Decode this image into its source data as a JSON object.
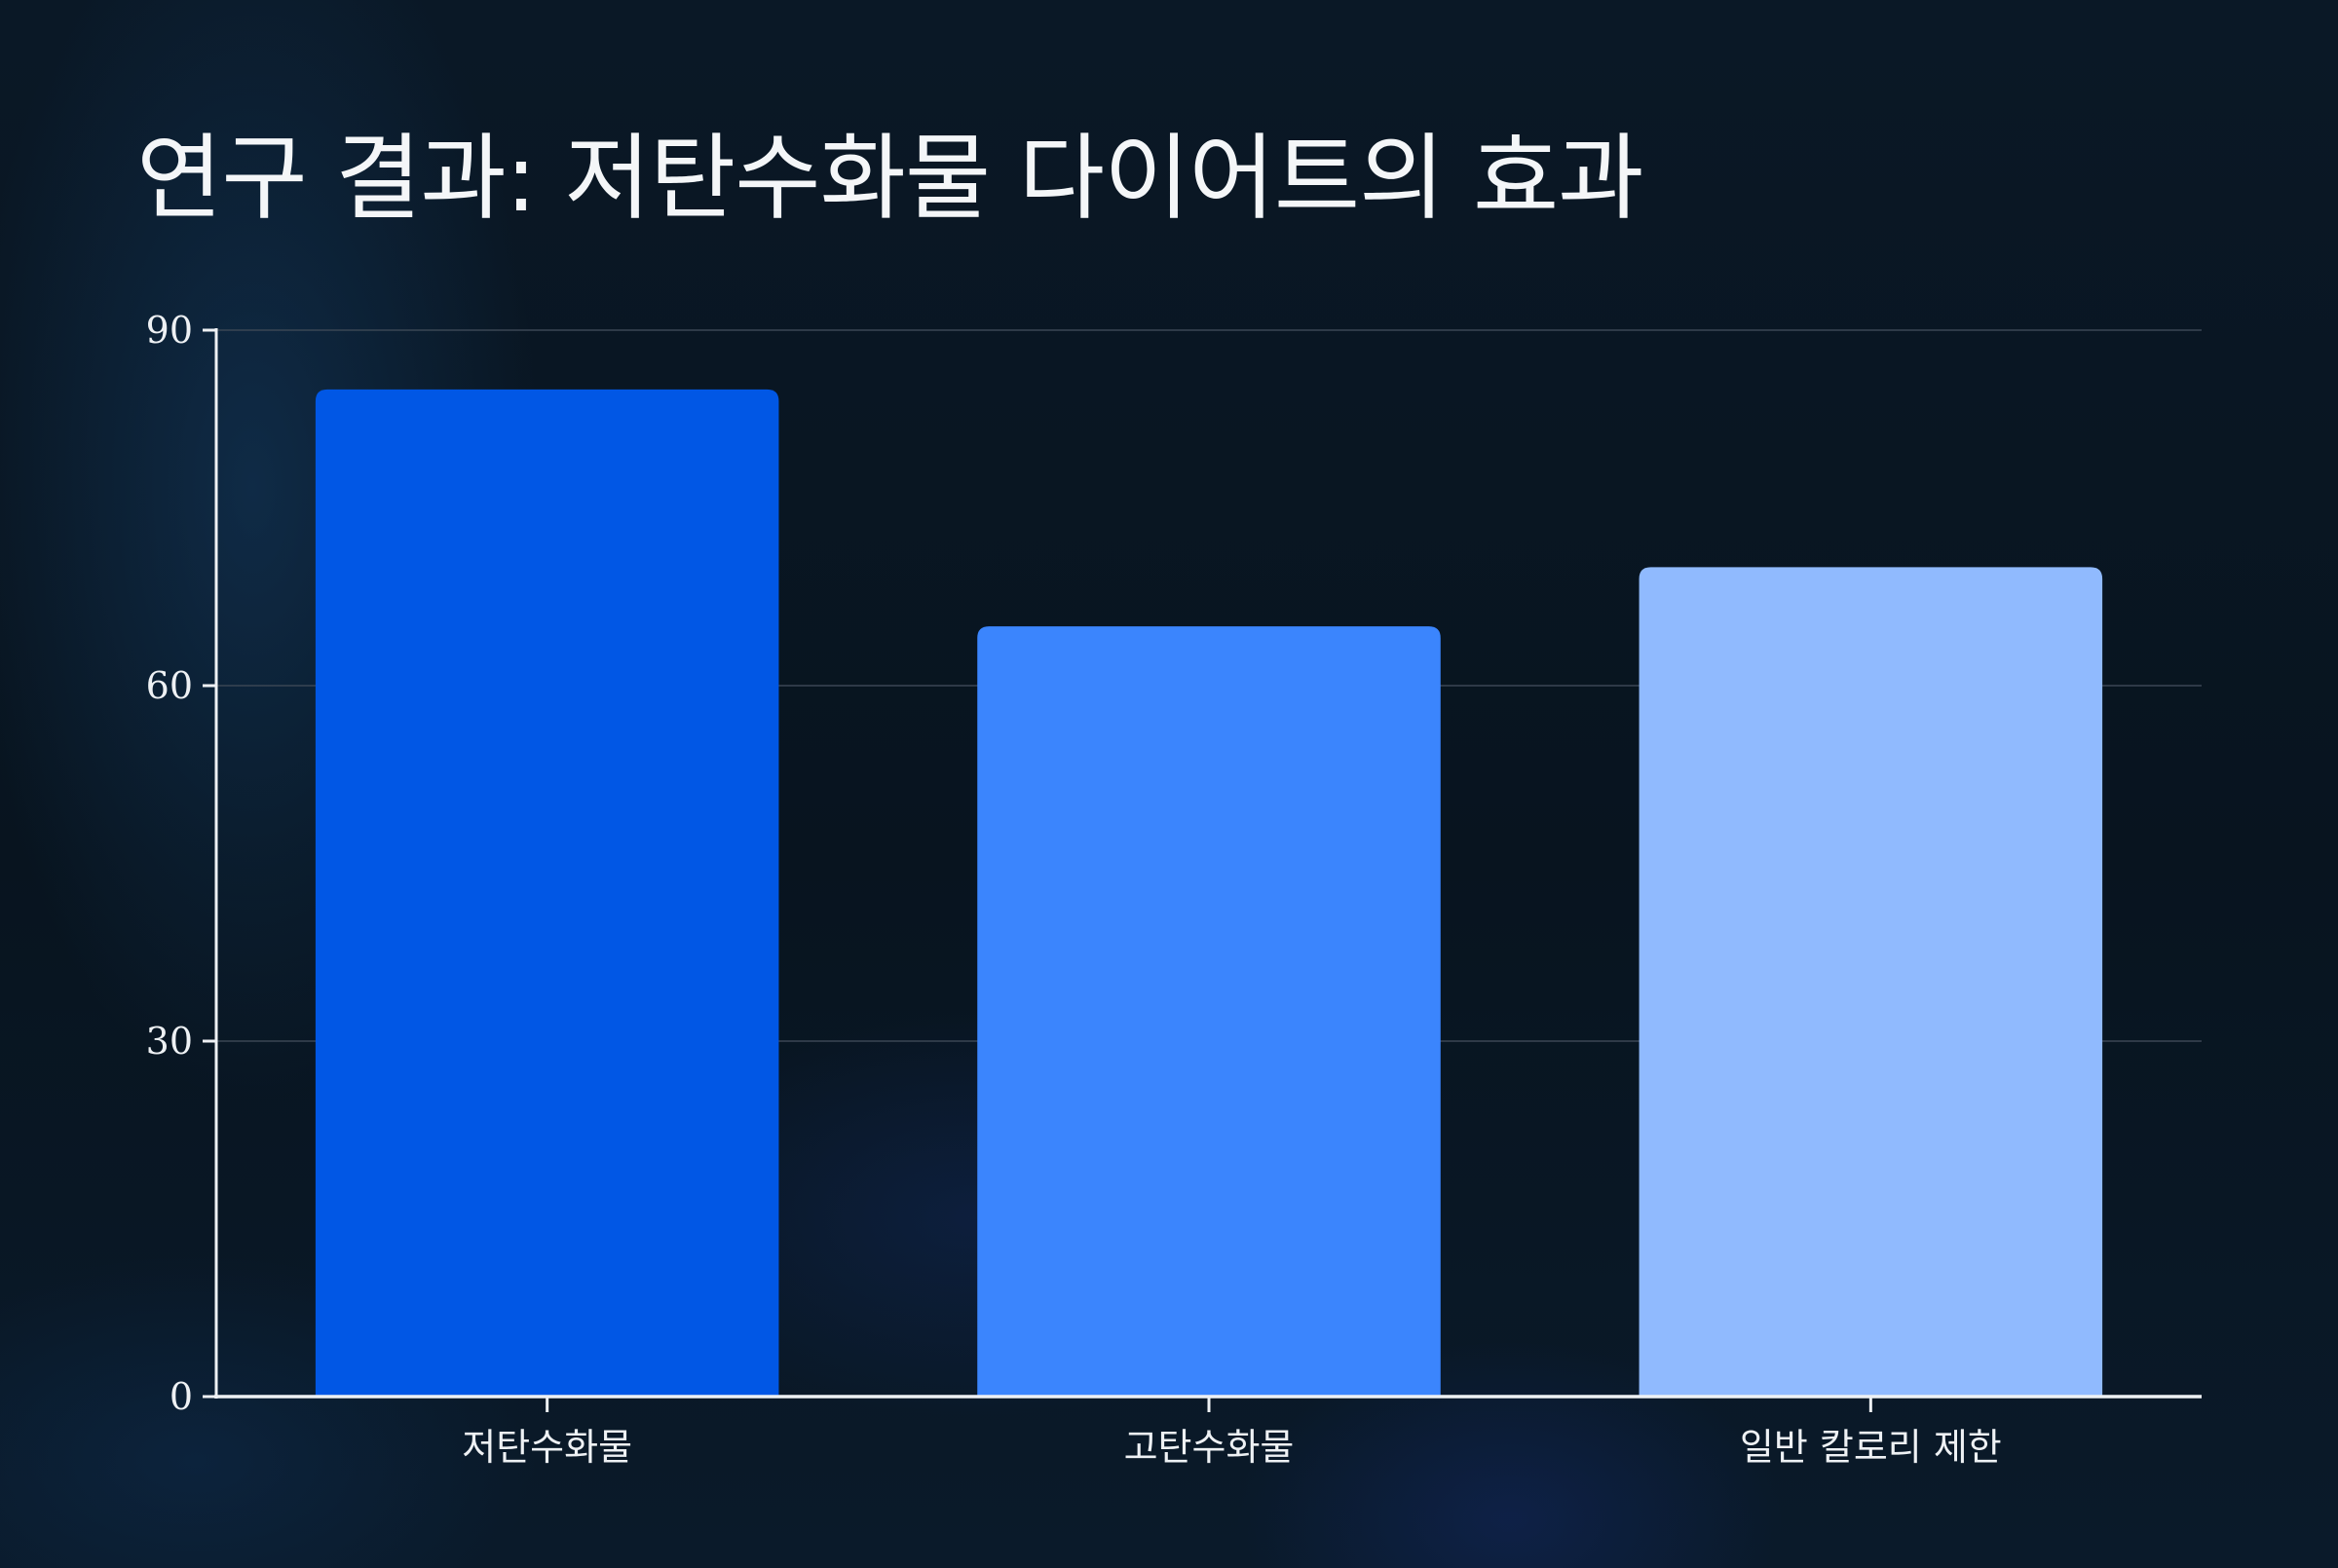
{
  "title": "연구 결과: 저탄수화물 다이어트의 효과",
  "chart_data": {
    "type": "bar",
    "title": "연구 결과: 저탄수화물 다이어트의 효과",
    "categories": [
      "저탄수화물",
      "고탄수화물",
      "일반 칼로리 제한"
    ],
    "values": [
      85,
      65,
      70
    ],
    "colors": [
      "#0157e5",
      "#3b85fd",
      "#90bafe"
    ],
    "ylim": [
      0,
      90
    ],
    "yticks": [
      0,
      30,
      60,
      90
    ],
    "grid": true,
    "xlabel": "",
    "ylabel": ""
  }
}
